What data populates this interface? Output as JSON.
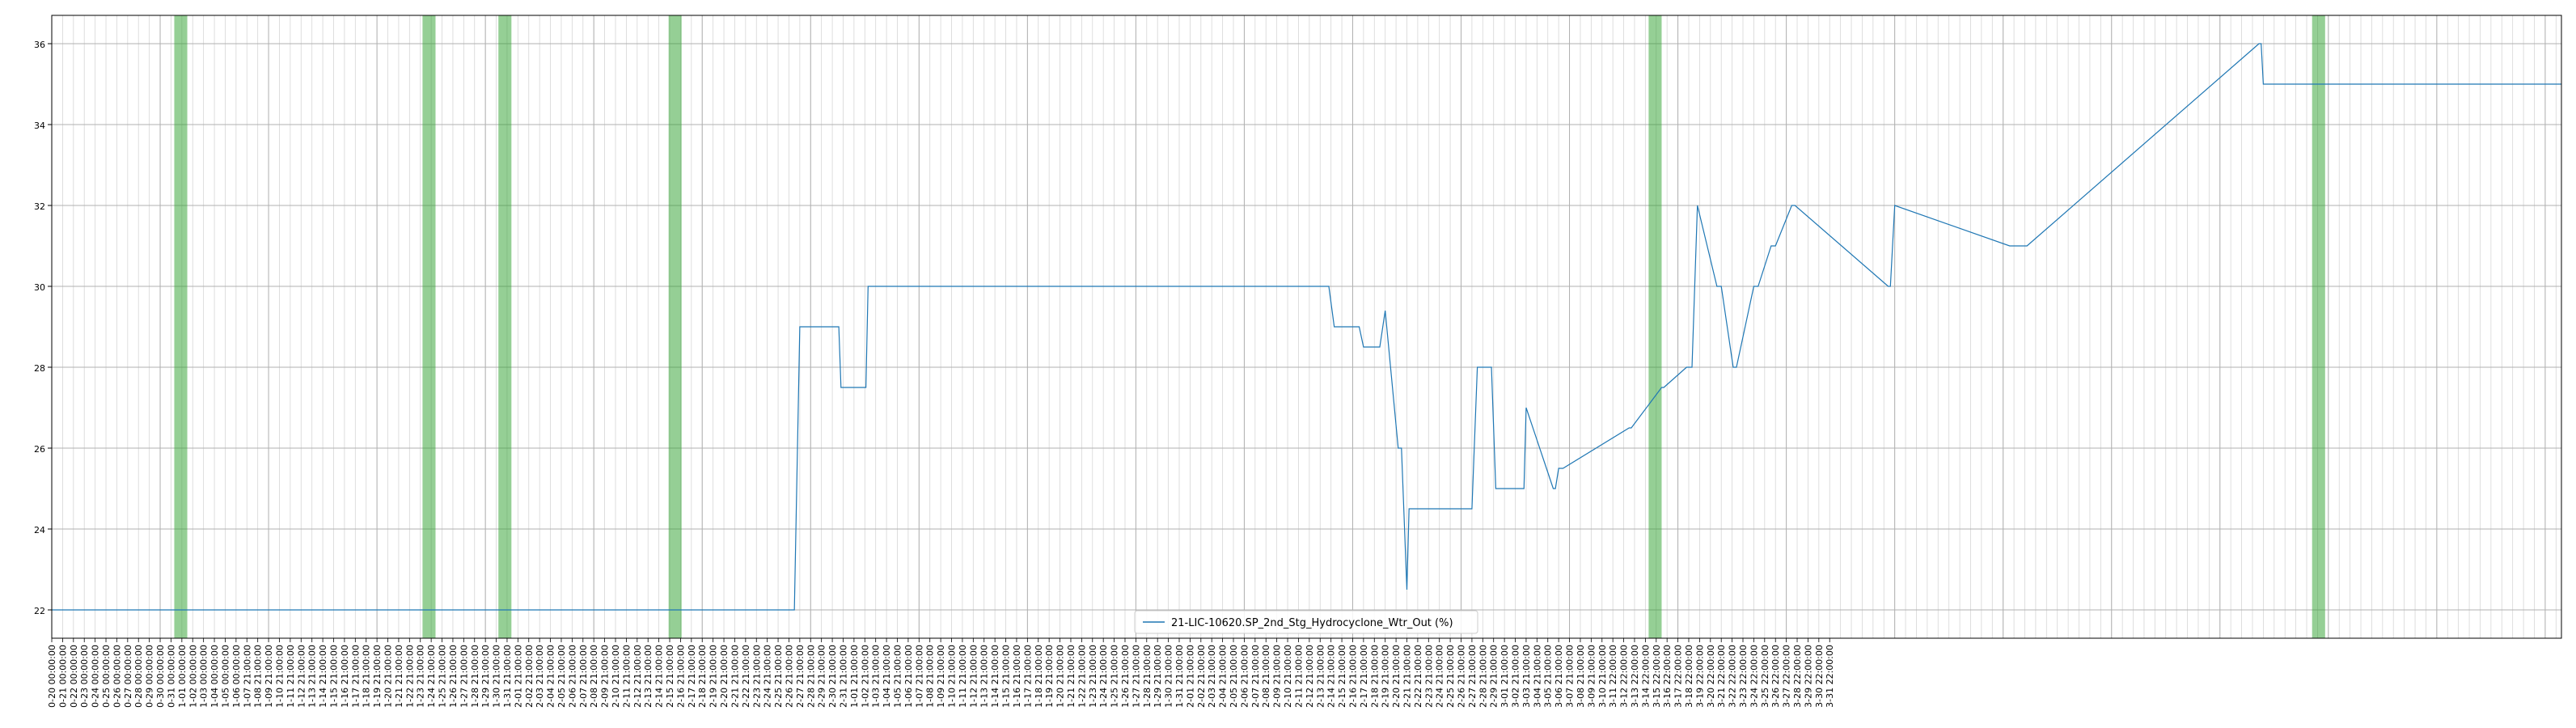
{
  "chart_data": {
    "type": "line",
    "title": "",
    "xlabel": "",
    "ylabel": "",
    "ylim": [
      21.3,
      36.7
    ],
    "yticks": [
      22,
      24,
      26,
      28,
      30,
      32,
      34,
      36
    ],
    "grid": true,
    "legend_position": "lower-center",
    "x_tick_labels": [
      "0-20 00:00:00",
      "0-21 00:00:00",
      "0-22 00:00:00",
      "0-23 00:00:00",
      "0-24 00:00:00",
      "0-25 00:00:00",
      "0-26 00:00:00",
      "0-27 00:00:00",
      "0-28 00:00:00",
      "0-29 00:00:00",
      "0-30 00:00:00",
      "0-31 00:00:00",
      "1-01 00:00:00",
      "1-02 00:00:00",
      "1-03 00:00:00",
      "1-04 00:00:00",
      "1-05 00:00:00",
      "1-06 00:00:00",
      "1-07 21:00:00",
      "1-08 21:00:00",
      "1-09 21:00:00",
      "1-10 21:00:00",
      "1-11 21:00:00",
      "1-12 21:00:00",
      "1-13 21:00:00",
      "1-14 21:00:00",
      "1-15 21:00:00",
      "1-16 21:00:00",
      "1-17 21:00:00",
      "1-18 21:00:00",
      "1-19 21:00:00",
      "1-20 21:00:00",
      "1-21 21:00:00",
      "1-22 21:00:00",
      "1-23 21:00:00",
      "1-24 21:00:00",
      "1-25 21:00:00",
      "1-26 21:00:00",
      "1-27 21:00:00",
      "1-28 21:00:00",
      "1-29 21:00:00",
      "1-30 21:00:00",
      "1-31 21:00:00",
      "2-01 21:00:00",
      "2-02 21:00:00",
      "2-03 21:00:00",
      "2-04 21:00:00",
      "2-05 21:00:00",
      "2-06 21:00:00",
      "2-07 21:00:00",
      "2-08 21:00:00",
      "2-09 21:00:00",
      "2-10 21:00:00",
      "2-11 21:00:00",
      "2-12 21:00:00",
      "2-13 21:00:00",
      "2-14 21:00:00",
      "2-15 21:00:00",
      "2-16 21:00:00",
      "2-17 21:00:00",
      "2-18 21:00:00",
      "2-19 21:00:00",
      "2-20 21:00:00",
      "2-21 21:00:00",
      "2-22 21:00:00",
      "2-23 21:00:00",
      "2-24 21:00:00",
      "2-25 21:00:00",
      "2-26 21:00:00",
      "2-27 21:00:00",
      "2-28 21:00:00",
      "2-29 21:00:00",
      "2-30 21:00:00",
      "2-31 21:00:00",
      "1-01 21:00:00",
      "1-02 21:00:00",
      "1-03 21:00:00",
      "1-04 21:00:00",
      "1-05 21:00:00",
      "1-06 21:00:00",
      "1-07 21:00:00",
      "1-08 21:00:00",
      "1-09 21:00:00",
      "1-10 21:00:00",
      "1-11 21:00:00",
      "1-12 21:00:00",
      "1-13 21:00:00",
      "1-14 21:00:00",
      "1-15 21:00:00",
      "1-16 21:00:00",
      "1-17 21:00:00",
      "1-18 21:00:00",
      "1-19 21:00:00",
      "1-20 21:00:00",
      "1-21 21:00:00",
      "1-22 21:00:00",
      "1-23 21:00:00",
      "1-24 21:00:00",
      "1-25 21:00:00",
      "1-26 21:00:00",
      "1-27 21:00:00",
      "1-28 21:00:00",
      "1-29 21:00:00",
      "1-30 21:00:00",
      "1-31 21:00:00",
      "2-01 21:00:00",
      "2-02 21:00:00",
      "2-03 21:00:00",
      "2-04 21:00:00",
      "2-05 21:00:00",
      "2-06 21:00:00",
      "2-07 21:00:00",
      "2-08 21:00:00",
      "2-09 21:00:00",
      "2-10 21:00:00",
      "2-11 21:00:00",
      "2-12 21:00:00",
      "2-13 21:00:00",
      "2-14 21:00:00",
      "2-15 21:00:00",
      "2-16 21:00:00",
      "2-17 21:00:00",
      "2-18 21:00:00",
      "2-19 21:00:00",
      "2-20 21:00:00",
      "2-21 21:00:00",
      "2-22 21:00:00",
      "2-23 21:00:00",
      "2-24 21:00:00",
      "2-25 21:00:00",
      "2-26 21:00:00",
      "2-27 21:00:00",
      "2-28 21:00:00",
      "2-29 21:00:00",
      "3-01 21:00:00",
      "3-02 21:00:00",
      "3-03 21:00:00",
      "3-04 21:00:00",
      "3-05 21:00:00",
      "3-06 21:00:00",
      "3-07 21:00:00",
      "3-08 21:00:00",
      "3-09 21:00:00",
      "3-10 21:00:00",
      "3-11 22:00:00",
      "3-12 22:00:00",
      "3-13 22:00:00",
      "3-14 22:00:00",
      "3-15 22:00:00",
      "3-16 22:00:00",
      "3-17 22:00:00",
      "3-18 22:00:00",
      "3-19 22:00:00",
      "3-20 22:00:00",
      "3-21 22:00:00",
      "3-22 22:00:00",
      "3-23 22:00:00",
      "3-24 22:00:00",
      "3-25 22:00:00",
      "3-26 22:00:00",
      "3-27 22:00:00",
      "3-28 22:00:00",
      "3-29 22:00:00",
      "3-30 22:00:00",
      "3-31 22:00:00"
    ],
    "series": [
      {
        "name": "21-LIC-10620.SP_2nd_Stg_Hydrocyclone_Wtr_Out (%)",
        "color": "#1f77b4",
        "x": [
          0,
          68.5,
          69.0,
          72.6,
          72.8,
          75.1,
          75.3,
          117.8,
          118.3,
          120.6,
          121.0,
          122.5,
          123.0,
          124.2,
          124.5,
          125.0,
          125.2,
          131.0,
          131.5,
          132.8,
          133.2,
          135.8,
          136.0,
          138.5,
          138.7,
          139.0,
          139.4,
          145.5,
          145.7,
          148.5,
          148.7,
          150.8,
          151.3,
          151.8,
          153.6,
          154.0,
          155.1,
          155.4,
          157.0,
          157.4,
          158.6,
          159.0,
          160.5,
          160.8,
          169.4,
          169.6,
          170.0,
          180.6,
          182.2,
          203.6,
          203.8,
          204.0,
          211.7,
          212.2,
          217.0,
          220.2,
          220.4,
          220.8,
          221.8,
          222.3,
          223.8,
          224.3,
          231.5
        ],
        "y": [
          22,
          22,
          29,
          29,
          27.5,
          27.5,
          30,
          30,
          29,
          29,
          28.5,
          28.5,
          29.4,
          26,
          26,
          22.5,
          24.5,
          24.5,
          28,
          28,
          25,
          25,
          27,
          25,
          25,
          25.5,
          25.5,
          26.5,
          26.5,
          27.5,
          27.5,
          28,
          28,
          32,
          30,
          30,
          28,
          28,
          30,
          30,
          31,
          31,
          32,
          32,
          30,
          30,
          32,
          31,
          31,
          36,
          36,
          35,
          35,
          35,
          35,
          35,
          35,
          35,
          35,
          35,
          35,
          35,
          35
        ]
      }
    ],
    "shaded_regions": {
      "color": "#2ca02c",
      "alpha": 0.5,
      "x_ranges": [
        [
          11.3,
          12.5
        ],
        [
          34.2,
          35.4
        ],
        [
          41.2,
          42.4
        ],
        [
          56.9,
          58.1
        ],
        [
          147.3,
          148.5
        ],
        [
          208.5,
          209.7
        ]
      ]
    },
    "x_range": [
      0,
      231.5
    ]
  }
}
